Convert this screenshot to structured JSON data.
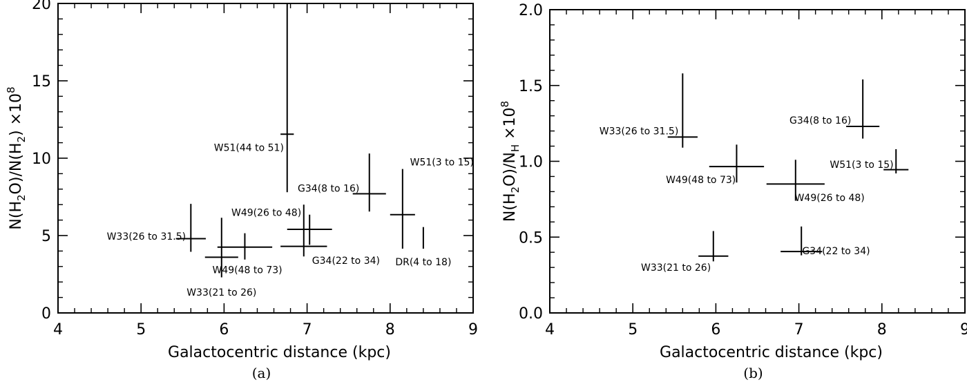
{
  "chart_data": [
    {
      "type": "scatter",
      "panel_label": "(a)",
      "xlabel": "Galactocentric distance (kpc)",
      "ylabel_parts": {
        "pre": "N(H",
        "sub1": "2",
        "mid": "O)/N(H",
        "sub2": "2",
        "post": ") ×10",
        "sup": "8"
      },
      "xlim": [
        4,
        9
      ],
      "ylim": [
        0,
        20
      ],
      "xticks": [
        "4",
        "5",
        "6",
        "7",
        "8",
        "9"
      ],
      "yticks": [
        "0",
        "5",
        "10",
        "15",
        "20"
      ],
      "points": [
        {
          "label": "W51(44 to 51)",
          "x": 6.76,
          "xerr": 0.08,
          "y": 11.55,
          "ylo": 7.8,
          "yhi": 20.0,
          "label_at": [
            6.72,
            10.7
          ],
          "anchor": "end"
        },
        {
          "label": "G34(8 to 16)",
          "x": 7.75,
          "xerr": 0.2,
          "y": 7.7,
          "ylo": 6.55,
          "yhi": 10.3,
          "label_at": [
            7.63,
            8.05
          ],
          "anchor": "end"
        },
        {
          "label": "W51(3 to 15)",
          "x": 8.15,
          "xerr": 0.15,
          "y": 6.35,
          "ylo": 4.15,
          "yhi": 9.3,
          "label_at": [
            8.24,
            9.75
          ],
          "anchor": "start"
        },
        {
          "label": "W49(26 to 48)",
          "x": 7.03,
          "xerr": 0.27,
          "y": 5.4,
          "ylo": 4.4,
          "yhi": 6.35,
          "label_at": [
            6.93,
            6.5
          ],
          "anchor": "end"
        },
        {
          "label": "G34(22 to 34)",
          "x": 6.96,
          "xerr": 0.28,
          "y": 4.3,
          "ylo": 3.65,
          "yhi": 7.0,
          "label_at": [
            7.06,
            3.4
          ],
          "anchor": "start"
        },
        {
          "label": "W33(26 to 31.5)",
          "x": 5.6,
          "xerr": 0.18,
          "y": 4.8,
          "ylo": 3.95,
          "yhi": 7.05,
          "label_at": [
            5.54,
            4.95
          ],
          "anchor": "end"
        },
        {
          "label": "W49(48 to 73)",
          "x": 6.25,
          "xerr": 0.33,
          "y": 4.25,
          "ylo": 3.45,
          "yhi": 5.15,
          "label_at": [
            6.28,
            2.8
          ],
          "anchor": "middle"
        },
        {
          "label": "W33(21 to 26)",
          "x": 5.97,
          "xerr": 0.2,
          "y": 3.6,
          "ylo": 2.3,
          "yhi": 6.15,
          "label_at": [
            5.97,
            1.35
          ],
          "anchor": "middle"
        },
        {
          "label": "DR(4 to 18)",
          "x": 8.4,
          "xerr": 0.0,
          "y": 4.85,
          "ylo": 4.15,
          "yhi": 5.55,
          "label_at": [
            8.4,
            3.3
          ],
          "anchor": "middle"
        }
      ]
    },
    {
      "type": "scatter",
      "panel_label": "(b)",
      "xlabel": "Galactocentric distance (kpc)",
      "ylabel_parts": {
        "pre": "N(H",
        "sub1": "2",
        "mid": "O)/N",
        "sub2": "H",
        "post": " ×10",
        "sup": "8"
      },
      "xlim": [
        4,
        9
      ],
      "ylim": [
        0.0,
        2.0
      ],
      "xticks": [
        "4",
        "5",
        "6",
        "7",
        "8",
        "9"
      ],
      "yticks": [
        "0.0",
        "0.5",
        "1.0",
        "1.5",
        "2.0"
      ],
      "points": [
        {
          "label": "W33(26 to 31.5)",
          "x": 5.6,
          "xerr": 0.18,
          "y": 1.16,
          "ylo": 1.09,
          "yhi": 1.58,
          "label_at": [
            5.55,
            1.2
          ],
          "anchor": "end"
        },
        {
          "label": "G34(8 to 16)",
          "x": 7.77,
          "xerr": 0.2,
          "y": 1.23,
          "ylo": 1.15,
          "yhi": 1.54,
          "label_at": [
            7.63,
            1.27
          ],
          "anchor": "end"
        },
        {
          "label": "W51(3 to 15)",
          "x": 8.17,
          "xerr": 0.15,
          "y": 0.945,
          "ylo": 0.92,
          "yhi": 1.08,
          "label_at": [
            8.14,
            0.98
          ],
          "anchor": "end"
        },
        {
          "label": "W49(48 to 73)",
          "x": 6.25,
          "xerr": 0.33,
          "y": 0.965,
          "ylo": 0.86,
          "yhi": 1.11,
          "label_at": [
            6.24,
            0.88
          ],
          "anchor": "end"
        },
        {
          "label": "W49(26 to 48)",
          "x": 6.96,
          "xerr": 0.35,
          "y": 0.85,
          "ylo": 0.74,
          "yhi": 1.01,
          "label_at": [
            6.95,
            0.76
          ],
          "anchor": "start"
        },
        {
          "label": "W33(21 to 26)",
          "x": 5.97,
          "xerr": 0.18,
          "y": 0.375,
          "ylo": 0.34,
          "yhi": 0.54,
          "label_at": [
            5.94,
            0.3
          ],
          "anchor": "end"
        },
        {
          "label": "G34(22 to 34)",
          "x": 7.03,
          "xerr": 0.25,
          "y": 0.405,
          "ylo": 0.38,
          "yhi": 0.57,
          "label_at": [
            7.04,
            0.41
          ],
          "anchor": "start"
        }
      ]
    }
  ]
}
